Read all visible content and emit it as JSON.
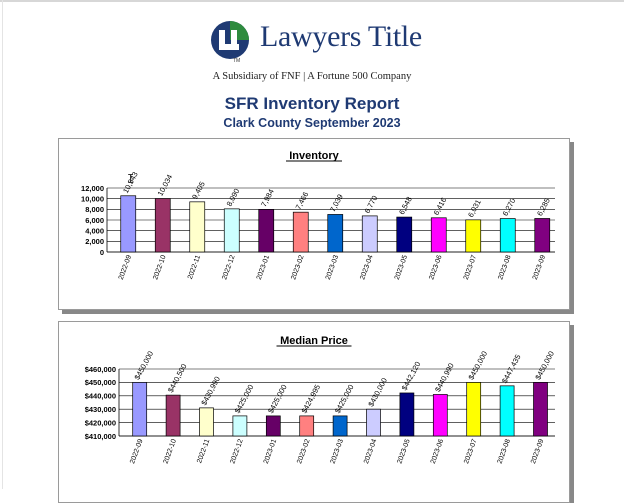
{
  "header": {
    "brand_name": "Lawyers Title",
    "brand_tm": "TM",
    "subsidiary": "A Subsidiary of FNF  |  A Fortune 500 Company",
    "report_title": "SFR Inventory Report",
    "report_subtitle": "Clark County September 2023"
  },
  "colors": {
    "brand_navy": "#1f3a73",
    "brand_green": "#2e8b3e",
    "bar_palette": [
      "#9999ff",
      "#993366",
      "#ffffcc",
      "#ccffff",
      "#660066",
      "#ff8080",
      "#0066cc",
      "#ccccff",
      "#000080",
      "#ff00ff",
      "#ffff00",
      "#00ffff",
      "#800080"
    ]
  },
  "chart_data": [
    {
      "type": "bar",
      "title": "Inventory",
      "categories": [
        "2022-09",
        "2022-10",
        "2022-11",
        "2022-12",
        "2023-01",
        "2023-02",
        "2023-03",
        "2023-04",
        "2023-05",
        "2023-06",
        "2023-07",
        "2023-08",
        "2023-09"
      ],
      "values": [
        10543,
        10034,
        9405,
        8090,
        7984,
        7466,
        7039,
        6770,
        6548,
        6416,
        6031,
        6270,
        6285
      ],
      "value_labels": [
        "10,543",
        "10,034",
        "9,405",
        "8,090",
        "7,984",
        "7,466",
        "7,039",
        "6,770",
        "6,548",
        "6,416",
        "6,031",
        "6,270",
        "6,285"
      ],
      "yticks": [
        0,
        2000,
        4000,
        6000,
        8000,
        10000,
        12000
      ],
      "ytick_labels": [
        "0",
        "2,000",
        "4,000",
        "6,000",
        "8,000",
        "10,000",
        "12,000"
      ],
      "ylim": [
        0,
        12000
      ],
      "grid": true,
      "legend": "none"
    },
    {
      "type": "bar",
      "title": "Median Price",
      "categories": [
        "2022-09",
        "2022-10",
        "2022-11",
        "2022-12",
        "2023-01",
        "2023-02",
        "2023-03",
        "2023-04",
        "2023-05",
        "2023-06",
        "2023-07",
        "2023-08",
        "2023-09"
      ],
      "values": [
        450000,
        440500,
        430990,
        425000,
        425000,
        424995,
        425000,
        430000,
        442120,
        440990,
        450000,
        447435,
        450000
      ],
      "value_labels": [
        "$450,000",
        "$440,500",
        "$430,990",
        "$425,000",
        "$425,000",
        "$424,995",
        "$425,000",
        "$430,000",
        "$442,120",
        "$440,990",
        "$450,000",
        "$447,435",
        "$450,000"
      ],
      "yticks": [
        410000,
        420000,
        430000,
        440000,
        450000,
        460000
      ],
      "ytick_labels": [
        "$410,000",
        "$420,000",
        "$430,000",
        "$440,000",
        "$450,000",
        "$460,000"
      ],
      "ylim": [
        410000,
        460000
      ],
      "grid": true,
      "legend": "none"
    }
  ]
}
